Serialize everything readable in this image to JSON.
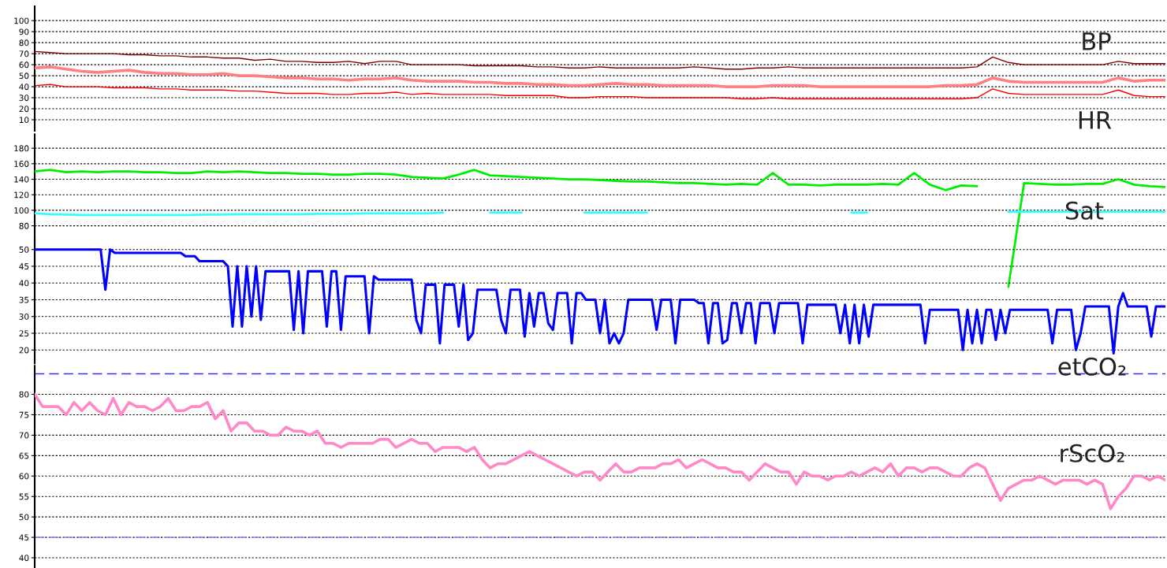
{
  "chart_data": [
    {
      "type": "line",
      "categories": [
        null,
        null,
        null,
        null,
        null,
        null,
        null,
        null,
        null,
        null,
        null,
        null,
        null,
        null,
        null,
        null,
        null,
        null,
        null,
        null,
        null,
        null,
        null,
        null,
        null,
        null,
        null,
        null,
        null,
        null,
        null,
        null,
        null,
        null,
        null,
        null,
        null,
        null,
        null,
        null,
        null,
        null,
        null,
        null,
        null,
        null,
        null,
        null,
        null,
        null,
        null,
        null,
        null,
        null,
        null,
        null,
        null,
        null,
        null,
        null,
        null,
        null,
        null,
        null,
        null,
        null,
        null,
        null,
        null,
        null,
        null,
        null,
        null
      ],
      "ylim": [
        0,
        113
      ],
      "yticks": [
        10,
        20,
        30,
        40,
        50,
        60,
        70,
        80,
        90,
        100
      ],
      "grid": "y",
      "tick_labels": "y",
      "annotations": [
        "BP"
      ],
      "series": [
        {
          "color": "#800000",
          "values": [
            72,
            71,
            70,
            70,
            70,
            70,
            69,
            69,
            68,
            68,
            67,
            67,
            66,
            66,
            64,
            65,
            63,
            63,
            62,
            62,
            63,
            61,
            63,
            63,
            60,
            60,
            60,
            60,
            59,
            59,
            59,
            59,
            58,
            58,
            57,
            57,
            58,
            57,
            57,
            57,
            57,
            57,
            58,
            57,
            56,
            56,
            57,
            57,
            58,
            57,
            57,
            57,
            57,
            57,
            57,
            57,
            57,
            57,
            57,
            57,
            58,
            67,
            62,
            60,
            60,
            60,
            60,
            60,
            60,
            63,
            61,
            61,
            61
          ]
        },
        {
          "color": "#ff8080",
          "values": [
            57,
            58,
            56,
            54,
            53,
            54,
            55,
            53,
            52,
            52,
            51,
            51,
            52,
            50,
            50,
            49,
            48,
            48,
            47,
            47,
            46,
            47,
            47,
            48,
            46,
            45,
            45,
            45,
            44,
            44,
            43,
            43,
            42,
            42,
            41,
            41,
            42,
            43,
            42,
            42,
            41,
            41,
            41,
            41,
            40,
            40,
            40,
            41,
            41,
            41,
            40,
            40,
            40,
            40,
            40,
            40,
            40,
            40,
            41,
            41,
            42,
            48,
            45,
            44,
            44,
            44,
            44,
            44,
            44,
            48,
            45,
            46,
            46
          ]
        },
        {
          "color": "#ff0000",
          "values": [
            41,
            42,
            40,
            40,
            40,
            39,
            39,
            39,
            38,
            38,
            37,
            37,
            37,
            36,
            36,
            35,
            34,
            34,
            34,
            33,
            33,
            34,
            34,
            35,
            33,
            34,
            33,
            33,
            33,
            33,
            32,
            32,
            32,
            32,
            30,
            30,
            31,
            31,
            31,
            30,
            30,
            30,
            30,
            30,
            30,
            29,
            29,
            30,
            29,
            29,
            29,
            29,
            29,
            29,
            29,
            29,
            29,
            29,
            29,
            29,
            30,
            38,
            34,
            33,
            33,
            33,
            33,
            33,
            33,
            37,
            32,
            31,
            31
          ]
        }
      ]
    },
    {
      "type": "line",
      "categories": [
        null,
        null,
        null,
        null,
        null,
        null,
        null,
        null,
        null,
        null,
        null,
        null,
        null,
        null,
        null,
        null,
        null,
        null,
        null,
        null,
        null,
        null,
        null,
        null,
        null,
        null,
        null,
        null,
        null,
        null,
        null,
        null,
        null,
        null,
        null,
        null,
        null,
        null,
        null,
        null,
        null,
        null,
        null,
        null,
        null,
        null,
        null,
        null,
        null,
        null,
        null,
        null,
        null,
        null,
        null,
        null,
        null,
        null,
        null,
        null,
        null,
        null,
        null,
        null,
        null,
        null,
        null,
        null,
        null,
        null,
        null,
        null,
        null
      ],
      "ylim": [
        0,
        198
      ],
      "yticks": [
        80,
        100,
        120,
        140,
        160,
        180
      ],
      "grid": "y",
      "tick_labels": "y",
      "annotations": [
        "HR",
        "Sat"
      ],
      "series": [
        {
          "color": "#00ee00",
          "values": [
            150,
            152,
            149,
            150,
            149,
            150,
            150,
            149,
            149,
            148,
            148,
            150,
            149,
            150,
            149,
            148,
            148,
            147,
            147,
            146,
            146,
            147,
            147,
            146,
            143,
            142,
            141,
            146,
            152,
            145,
            144,
            143,
            142,
            141,
            140,
            140,
            139,
            138,
            137,
            137,
            136,
            135,
            135,
            134,
            133,
            134,
            133,
            148,
            133,
            133,
            132,
            133,
            133,
            133,
            134,
            133,
            148,
            133,
            126,
            132,
            131,
            null,
            1,
            135,
            134,
            133,
            133,
            134,
            134,
            140,
            133,
            131,
            130
          ]
        },
        {
          "color": "#33ffff",
          "values": [
            96,
            95,
            94.5,
            94,
            94,
            94,
            94,
            94,
            94,
            94,
            94,
            94.5,
            94.5,
            95,
            95,
            95,
            95,
            95,
            95.5,
            95.5,
            95.5,
            96,
            96,
            96,
            96,
            96,
            97,
            null,
            null,
            97,
            97,
            97,
            null,
            null,
            null,
            97,
            97,
            97,
            97,
            97,
            null,
            null,
            null,
            null,
            null,
            null,
            null,
            null,
            null,
            null,
            null,
            null,
            97,
            97,
            null,
            null,
            null,
            null,
            null,
            null,
            null,
            null,
            98,
            98,
            98,
            98,
            98,
            98,
            98,
            98,
            98,
            98,
            98
          ]
        }
      ]
    },
    {
      "type": "line",
      "categories": [
        null,
        null,
        null,
        null,
        null,
        null,
        null,
        null,
        null,
        null,
        null,
        null,
        null,
        null,
        null,
        null,
        null,
        null,
        null,
        null,
        null,
        null,
        null,
        null,
        null,
        null,
        null,
        null,
        null,
        null,
        null,
        null,
        null,
        null,
        null,
        null,
        null,
        null,
        null,
        null,
        null,
        null,
        null,
        null,
        null,
        null,
        null,
        null,
        null,
        null,
        null,
        null,
        null,
        null,
        null,
        null,
        null,
        null,
        null,
        null,
        null,
        null,
        null,
        null,
        null,
        null,
        null,
        null,
        null,
        null,
        null,
        null,
        null,
        null,
        null,
        null,
        null,
        null,
        null,
        null,
        null,
        null,
        null,
        null,
        null,
        null,
        null,
        null,
        null,
        null,
        null,
        null,
        null,
        null,
        null,
        null,
        null,
        null,
        null,
        null,
        null,
        null,
        null,
        null,
        null,
        null,
        null,
        null,
        null,
        null,
        null,
        null,
        null,
        null,
        null,
        null,
        null,
        null,
        null,
        null,
        null,
        null,
        null,
        null,
        null,
        null,
        null,
        null,
        null,
        null,
        null,
        null,
        null,
        null,
        null,
        null,
        null,
        null,
        null,
        null,
        null,
        null,
        null,
        null,
        null,
        null,
        null,
        null,
        null,
        null,
        null,
        null,
        null,
        null,
        null,
        null,
        null,
        null,
        null,
        null,
        null,
        null,
        null,
        null,
        null,
        null,
        null,
        null,
        null,
        null,
        null,
        null,
        null,
        null,
        null,
        null,
        null,
        null,
        null,
        null,
        null,
        null,
        null,
        null,
        null,
        null,
        null,
        null,
        null,
        null,
        null,
        null,
        null,
        null,
        null,
        null,
        null,
        null,
        null,
        null,
        null,
        null,
        null,
        null,
        null,
        null,
        null,
        null,
        null,
        null,
        null,
        null,
        null,
        null,
        null,
        null,
        null,
        null,
        null,
        null,
        null,
        null,
        null,
        null,
        null,
        null,
        null,
        null,
        null,
        null,
        null,
        null,
        null,
        null,
        null,
        null,
        null,
        null,
        null,
        null,
        null
      ],
      "ylim": [
        16,
        54
      ],
      "yticks": [
        20,
        25,
        30,
        35,
        40,
        45,
        50
      ],
      "grid": "y",
      "tick_labels": "y",
      "annotations": [
        "etCO₂"
      ],
      "series": [
        {
          "color": "#0000ff",
          "values": [
            50,
            50,
            50,
            50,
            50,
            50,
            50,
            50,
            50,
            50,
            50,
            50,
            50,
            50,
            50,
            38,
            50,
            49,
            49,
            49,
            49,
            49,
            49,
            49,
            49,
            49,
            49,
            49,
            49,
            49,
            49,
            49,
            48,
            48,
            48,
            46.5,
            46.5,
            46.5,
            46.5,
            46.5,
            46.5,
            45,
            27,
            45,
            27,
            45,
            30,
            45,
            29,
            43.5,
            43.5,
            43.5,
            43.5,
            43.5,
            43.5,
            26,
            43.5,
            25,
            43.5,
            43.5,
            43.5,
            43.5,
            27,
            43.5,
            43.5,
            26,
            42,
            42,
            42,
            42,
            42,
            25,
            42,
            41,
            41,
            41,
            41,
            41,
            41,
            41,
            41,
            29,
            25,
            39.5,
            39.5,
            39.5,
            22,
            39.5,
            39.5,
            39.5,
            27,
            39.5,
            23,
            25,
            38,
            38,
            38,
            38,
            38,
            29,
            25,
            38,
            38,
            38,
            24,
            37,
            27,
            37,
            37,
            28,
            26,
            37,
            37,
            37,
            22,
            37,
            37,
            35,
            35,
            35,
            25,
            35,
            22,
            25,
            22,
            25,
            35,
            35,
            35,
            35,
            35,
            35,
            26,
            35,
            35,
            35,
            22,
            35,
            35,
            35,
            35,
            34,
            34,
            22,
            34,
            34,
            22,
            23,
            34,
            34,
            25,
            34,
            34,
            22,
            34,
            34,
            34,
            25,
            34,
            34,
            34,
            34,
            34,
            22,
            33.5,
            33.5,
            33.5,
            33.5,
            33.5,
            33.5,
            33.5,
            25,
            33.5,
            22,
            33.5,
            22,
            33.5,
            24,
            33.5,
            33.5,
            33.5,
            33.5,
            33.5,
            33.5,
            33.5,
            33.5,
            33.5,
            33.5,
            33.5,
            22,
            32,
            32,
            32,
            32,
            32,
            32,
            32,
            20,
            32,
            22,
            32,
            22,
            32,
            32,
            23,
            32,
            25,
            32,
            32,
            32,
            32,
            32,
            32,
            32,
            32,
            32,
            22,
            32,
            32,
            32,
            32,
            20,
            25,
            33,
            33,
            33,
            33,
            33,
            33,
            19,
            33,
            37,
            33,
            33,
            33,
            33,
            33,
            24,
            33,
            33,
            33
          ]
        }
      ]
    },
    {
      "type": "line",
      "categories": [
        null,
        null,
        null,
        null,
        null,
        null,
        null,
        null,
        null,
        null,
        null,
        null,
        null,
        null,
        null,
        null,
        null,
        null,
        null,
        null,
        null,
        null,
        null,
        null,
        null,
        null,
        null,
        null,
        null,
        null,
        null,
        null,
        null,
        null,
        null,
        null,
        null,
        null,
        null,
        null,
        null,
        null,
        null,
        null,
        null,
        null,
        null,
        null,
        null,
        null,
        null,
        null,
        null,
        null,
        null,
        null,
        null,
        null,
        null,
        null,
        null,
        null,
        null,
        null,
        null,
        null,
        null,
        null,
        null,
        null,
        null,
        null,
        null,
        null,
        null,
        null,
        null,
        null,
        null,
        null,
        null,
        null,
        null,
        null,
        null,
        null,
        null,
        null,
        null,
        null,
        null,
        null,
        null,
        null,
        null,
        null,
        null,
        null,
        null,
        null,
        null,
        null,
        null,
        null,
        null,
        null,
        null,
        null,
        null,
        null,
        null,
        null,
        null,
        null,
        null,
        null,
        null,
        null,
        null,
        null,
        null,
        null,
        null,
        null,
        null,
        null,
        null,
        null,
        null,
        null,
        null,
        null,
        null,
        null,
        null,
        null,
        null,
        null,
        null,
        null,
        null,
        null,
        null,
        null,
        null
      ],
      "ylim": [
        37.5,
        87
      ],
      "yticks": [
        40,
        45,
        50,
        55,
        60,
        65,
        70,
        75,
        80
      ],
      "grid": "y",
      "tick_labels": "y",
      "annotations": [
        "rScO₂"
      ],
      "ref_lines": [
        {
          "axis": "y",
          "value": 85,
          "color": "#3333ee",
          "line_style": "dashed"
        },
        {
          "axis": "y",
          "value": 45,
          "color": "#8888ff",
          "line_style": "dashed"
        }
      ],
      "series": [
        {
          "color": "#ff88c8",
          "values": [
            80,
            77,
            77,
            77,
            75,
            78,
            76,
            78,
            76,
            75,
            79,
            75,
            78,
            77,
            77,
            76,
            77,
            79,
            76,
            76,
            77,
            77,
            78,
            74,
            76,
            71,
            73,
            73,
            71,
            71,
            70,
            70,
            72,
            71,
            71,
            70,
            71,
            68,
            68,
            67,
            68,
            68,
            68,
            68,
            69,
            69,
            67,
            68,
            69,
            68,
            68,
            66,
            67,
            67,
            67,
            66,
            67,
            64,
            62,
            63,
            63,
            64,
            65,
            66,
            65,
            64,
            63,
            62,
            61,
            60,
            61,
            61,
            59,
            61,
            63,
            61,
            61,
            62,
            62,
            62,
            63,
            63,
            64,
            62,
            63,
            64,
            63,
            62,
            62,
            61,
            61,
            59,
            61,
            63,
            62,
            61,
            61,
            58,
            61,
            60,
            60,
            59,
            60,
            60,
            61,
            60,
            61,
            62,
            61,
            63,
            60,
            62,
            62,
            61,
            62,
            62,
            61,
            60,
            60,
            62,
            63,
            62,
            58,
            54,
            57,
            58,
            59,
            59,
            60,
            59,
            58,
            59,
            59,
            59,
            58,
            59,
            58,
            52,
            55,
            57,
            60,
            60,
            59,
            60,
            59
          ]
        }
      ]
    }
  ]
}
